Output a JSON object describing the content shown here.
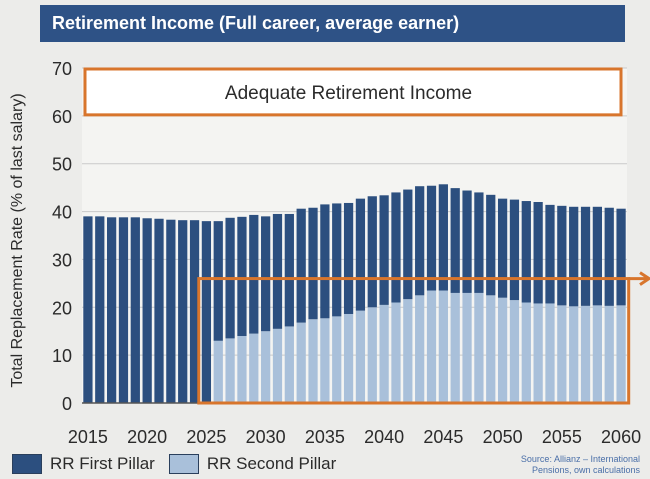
{
  "title": "Retirement Income (Full career, average earner)",
  "source_line1": "Source: Allianz – International",
  "source_line2": "Pensions, own calculations",
  "annotation": "Adequate Retirement Income",
  "colors": {
    "title_bg": "#2e5286",
    "first_pillar": "#2c4f7f",
    "second_pillar": "#a9c0da",
    "highlight_box": "#d8752c",
    "grid": "#c9c9c9"
  },
  "chart_data": {
    "type": "bar",
    "stacked": true,
    "ylabel": "Total Replacement Rate (% of last salary)",
    "ylim": [
      0,
      70
    ],
    "yticks": [
      0,
      10,
      20,
      30,
      40,
      50,
      60,
      70
    ],
    "xticks": [
      2015,
      2020,
      2025,
      2030,
      2035,
      2040,
      2045,
      2050,
      2055,
      2060
    ],
    "x": [
      2015,
      2016,
      2017,
      2018,
      2019,
      2020,
      2021,
      2022,
      2023,
      2024,
      2025,
      2026,
      2027,
      2028,
      2029,
      2030,
      2031,
      2032,
      2033,
      2034,
      2035,
      2036,
      2037,
      2038,
      2039,
      2040,
      2041,
      2042,
      2043,
      2044,
      2045,
      2046,
      2047,
      2048,
      2049,
      2050,
      2051,
      2052,
      2053,
      2054,
      2055,
      2056,
      2057,
      2058,
      2059,
      2060
    ],
    "series": [
      {
        "name": "RR First Pillar",
        "values": [
          39,
          39,
          38.8,
          38.8,
          38.8,
          38.6,
          38.5,
          38.3,
          38.2,
          38.2,
          38,
          25,
          25.2,
          24.9,
          24.8,
          24,
          24,
          23.5,
          23.8,
          23.3,
          23.8,
          23.6,
          23.2,
          23.4,
          23.2,
          22.9,
          23,
          22.9,
          22.8,
          21.9,
          22.2,
          21.9,
          21.4,
          21,
          21,
          20.7,
          21,
          21.2,
          21.2,
          20.6,
          20.8,
          20.8,
          20.7,
          20.6,
          20.5,
          20.2
        ]
      },
      {
        "name": "RR Second Pillar",
        "values": [
          0,
          0,
          0,
          0,
          0,
          0,
          0,
          0,
          0,
          0,
          0,
          13,
          13.5,
          14,
          14.5,
          15,
          15.5,
          16,
          16.8,
          17.5,
          17.7,
          18.1,
          18.6,
          19.3,
          20,
          20.5,
          21,
          21.7,
          22.5,
          23.5,
          23.5,
          23,
          23,
          23,
          22.5,
          22,
          21.5,
          21,
          20.8,
          20.8,
          20.4,
          20.2,
          20.3,
          20.4,
          20.3,
          20.4
        ]
      }
    ],
    "annotations": [
      {
        "type": "box",
        "text": "Adequate Retirement Income",
        "y_range": [
          60,
          70
        ]
      },
      {
        "type": "box",
        "x_range": [
          2025,
          2060
        ],
        "y_range": [
          0,
          26
        ]
      }
    ]
  },
  "legend": {
    "first": "RR First Pillar",
    "second": "RR Second Pillar"
  }
}
